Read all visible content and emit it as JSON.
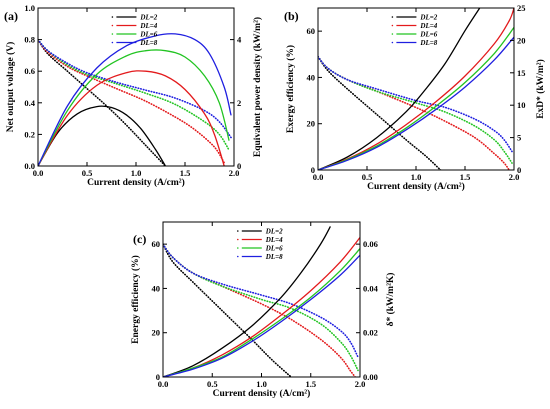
{
  "chart_data": [
    {
      "type": "line",
      "panel": "(a)",
      "xlabel": "Current density (A/cm²)",
      "ylabel_left": "Net output voltage (V)",
      "ylabel_right": "Equivalent power density (kW/m²)",
      "xlim": [
        0,
        2.0
      ],
      "ylim_left": [
        0,
        1.0
      ],
      "ylim_right": [
        0,
        5
      ],
      "xticks": [
        "0.0",
        "0.5",
        "1.0",
        "1.5",
        "2.0"
      ],
      "yticks_left": [
        "0.0",
        "0.2",
        "0.4",
        "0.6",
        "0.8",
        "1.0"
      ],
      "yticks_right": [
        "0",
        "2",
        "4"
      ],
      "legend": {
        "position": "top-right",
        "entries": [
          "DL=2",
          "DL=4",
          "DL=6",
          "DL=8"
        ]
      },
      "colors": {
        "DL=2": "#000000",
        "DL=4": "#e31a1c",
        "DL=6": "#22c422",
        "DL=8": "#1f1fe0"
      },
      "series": [
        {
          "name": "DL=2",
          "axis": "left",
          "style": "dotted",
          "x": [
            0.0,
            0.1,
            0.3,
            0.5,
            0.7,
            0.9,
            1.1,
            1.3
          ],
          "y": [
            0.8,
            0.71,
            0.6,
            0.49,
            0.38,
            0.26,
            0.13,
            0.0
          ]
        },
        {
          "name": "DL=4",
          "axis": "left",
          "style": "dotted",
          "x": [
            0.0,
            0.1,
            0.3,
            0.5,
            0.8,
            1.1,
            1.4,
            1.6,
            1.8,
            1.9
          ],
          "y": [
            0.8,
            0.72,
            0.63,
            0.57,
            0.49,
            0.41,
            0.31,
            0.23,
            0.12,
            0.02
          ]
        },
        {
          "name": "DL=6",
          "axis": "left",
          "style": "dotted",
          "x": [
            0.0,
            0.1,
            0.3,
            0.5,
            0.8,
            1.1,
            1.4,
            1.7,
            1.85,
            1.95
          ],
          "y": [
            0.8,
            0.73,
            0.64,
            0.58,
            0.52,
            0.46,
            0.39,
            0.28,
            0.2,
            0.1
          ]
        },
        {
          "name": "DL=8",
          "axis": "left",
          "style": "dotted",
          "x": [
            0.0,
            0.1,
            0.3,
            0.5,
            0.8,
            1.1,
            1.4,
            1.7,
            1.85,
            1.97
          ],
          "y": [
            0.8,
            0.73,
            0.65,
            0.59,
            0.53,
            0.48,
            0.43,
            0.35,
            0.28,
            0.18
          ]
        },
        {
          "name": "DL=2",
          "axis": "right",
          "style": "solid",
          "x": [
            0.0,
            0.2,
            0.4,
            0.6,
            0.75,
            0.9,
            1.05,
            1.2,
            1.3
          ],
          "y": [
            0.0,
            1.05,
            1.65,
            1.88,
            1.85,
            1.62,
            1.18,
            0.52,
            0.0
          ]
        },
        {
          "name": "DL=4",
          "axis": "right",
          "style": "solid",
          "x": [
            0.0,
            0.3,
            0.6,
            0.9,
            1.1,
            1.3,
            1.5,
            1.7,
            1.8,
            1.9
          ],
          "y": [
            0.0,
            1.6,
            2.55,
            2.95,
            3.0,
            2.85,
            2.42,
            1.65,
            1.0,
            0.0
          ]
        },
        {
          "name": "DL=6",
          "axis": "right",
          "style": "solid",
          "x": [
            0.0,
            0.3,
            0.6,
            0.9,
            1.1,
            1.3,
            1.5,
            1.7,
            1.85,
            1.95
          ],
          "y": [
            0.0,
            1.75,
            2.9,
            3.48,
            3.65,
            3.65,
            3.45,
            2.85,
            2.0,
            0.8
          ]
        },
        {
          "name": "DL=8",
          "axis": "right",
          "style": "solid",
          "x": [
            0.0,
            0.3,
            0.6,
            0.9,
            1.2,
            1.4,
            1.6,
            1.75,
            1.9,
            1.97
          ],
          "y": [
            0.0,
            1.9,
            3.1,
            3.8,
            4.12,
            4.18,
            4.0,
            3.55,
            2.5,
            1.6
          ]
        }
      ]
    },
    {
      "type": "line",
      "panel": "(b)",
      "xlabel": "Current density (A/cm²)",
      "ylabel_left": "Exergy efficiency (%)",
      "ylabel_right": "ExD* (kW/m²)",
      "xlim": [
        0,
        2.0
      ],
      "ylim_left": [
        0,
        70
      ],
      "ylim_right": [
        0,
        25
      ],
      "xticks": [
        "0.0",
        "0.5",
        "1.0",
        "1.5",
        "2.0"
      ],
      "yticks_left": [
        "0",
        "20",
        "40",
        "60"
      ],
      "yticks_right": [
        "0",
        "5",
        "10",
        "15",
        "20",
        "25"
      ],
      "legend": {
        "position": "top-right",
        "entries": [
          "DL=2",
          "DL=4",
          "DL=6",
          "DL=8"
        ]
      },
      "colors": {
        "DL=2": "#000000",
        "DL=4": "#e31a1c",
        "DL=6": "#22c422",
        "DL=8": "#1f1fe0"
      },
      "series": [
        {
          "name": "DL=2",
          "axis": "left",
          "style": "dotted",
          "x": [
            0.0,
            0.1,
            0.3,
            0.6,
            0.9,
            1.1,
            1.25
          ],
          "y": [
            49,
            43,
            35,
            24,
            13,
            6,
            0
          ]
        },
        {
          "name": "DL=4",
          "axis": "left",
          "style": "dotted",
          "x": [
            0.0,
            0.1,
            0.3,
            0.6,
            1.0,
            1.3,
            1.6,
            1.8,
            1.9,
            1.95
          ],
          "y": [
            49,
            44,
            39,
            34,
            27,
            21,
            14,
            7,
            3,
            0
          ]
        },
        {
          "name": "DL=6",
          "axis": "left",
          "style": "dotted",
          "x": [
            0.0,
            0.1,
            0.3,
            0.6,
            1.0,
            1.3,
            1.6,
            1.8,
            1.9,
            1.98
          ],
          "y": [
            49,
            44,
            39,
            34,
            29,
            25,
            19,
            13,
            8,
            3
          ]
        },
        {
          "name": "DL=8",
          "axis": "left",
          "style": "dotted",
          "x": [
            0.0,
            0.1,
            0.3,
            0.6,
            1.0,
            1.3,
            1.6,
            1.8,
            1.9,
            1.98
          ],
          "y": [
            49,
            44,
            39,
            35,
            30,
            27,
            22,
            17,
            13,
            8
          ]
        },
        {
          "name": "DL=2",
          "axis": "right",
          "style": "solid",
          "x": [
            0.0,
            0.3,
            0.6,
            0.9,
            1.1,
            1.3,
            1.5,
            1.65
          ],
          "y": [
            0.0,
            2.0,
            5.0,
            9.0,
            12.5,
            16.5,
            21.5,
            25.0
          ]
        },
        {
          "name": "DL=4",
          "axis": "right",
          "style": "solid",
          "x": [
            0.0,
            0.3,
            0.6,
            0.9,
            1.2,
            1.5,
            1.8,
            1.95,
            2.0
          ],
          "y": [
            0.0,
            1.7,
            4.0,
            7.0,
            10.5,
            14.5,
            19.5,
            23.0,
            25.0
          ]
        },
        {
          "name": "DL=6",
          "axis": "right",
          "style": "solid",
          "x": [
            0.0,
            0.3,
            0.6,
            0.9,
            1.2,
            1.5,
            1.8,
            2.0
          ],
          "y": [
            0.0,
            1.6,
            3.7,
            6.5,
            9.8,
            13.5,
            18.0,
            22.0
          ]
        },
        {
          "name": "DL=8",
          "axis": "right",
          "style": "solid",
          "x": [
            0.0,
            0.3,
            0.6,
            0.9,
            1.2,
            1.5,
            1.8,
            2.0
          ],
          "y": [
            0.0,
            1.5,
            3.5,
            6.2,
            9.3,
            12.8,
            17.0,
            20.5
          ]
        }
      ]
    },
    {
      "type": "line",
      "panel": "(c)",
      "xlabel": "Current density (A/cm²)",
      "ylabel_left": "Energy efficiency (%)",
      "ylabel_right": "δ* (kW/m²K)",
      "xlim": [
        0,
        2.0
      ],
      "ylim_left": [
        0,
        70
      ],
      "ylim_right": [
        0,
        0.07
      ],
      "xticks": [
        "0.0",
        "0.5",
        "1.0",
        "1.5",
        "2.0"
      ],
      "yticks_left": [
        "0",
        "20",
        "40",
        "60"
      ],
      "yticks_right": [
        "0.00",
        "0.02",
        "0.04",
        "0.06"
      ],
      "legend": {
        "position": "top-right",
        "entries": [
          "DL=2",
          "DL=4",
          "DL=6",
          "DL=8"
        ]
      },
      "colors": {
        "DL=2": "#000000",
        "DL=4": "#e31a1c",
        "DL=6": "#22c422",
        "DL=8": "#1f1fe0"
      },
      "series": [
        {
          "name": "DL=2",
          "axis": "left",
          "style": "dotted",
          "x": [
            0.0,
            0.1,
            0.3,
            0.6,
            0.9,
            1.1,
            1.3
          ],
          "y": [
            60,
            52,
            43,
            30,
            17,
            8,
            0
          ]
        },
        {
          "name": "DL=4",
          "axis": "left",
          "style": "dotted",
          "x": [
            0.0,
            0.1,
            0.3,
            0.6,
            1.0,
            1.3,
            1.6,
            1.8,
            1.9,
            1.95
          ],
          "y": [
            60,
            54,
            47,
            41,
            33,
            26,
            17,
            9,
            3,
            0
          ]
        },
        {
          "name": "DL=6",
          "axis": "left",
          "style": "dotted",
          "x": [
            0.0,
            0.1,
            0.3,
            0.6,
            1.0,
            1.3,
            1.6,
            1.8,
            1.9,
            1.98
          ],
          "y": [
            60,
            54,
            47,
            41,
            35,
            31,
            24,
            16,
            10,
            3
          ]
        },
        {
          "name": "DL=8",
          "axis": "left",
          "style": "dotted",
          "x": [
            0.0,
            0.1,
            0.3,
            0.6,
            1.0,
            1.3,
            1.6,
            1.8,
            1.9,
            1.98
          ],
          "y": [
            60,
            54,
            47,
            42,
            37,
            33,
            27,
            21,
            16,
            9
          ]
        },
        {
          "name": "DL=2",
          "axis": "right",
          "style": "solid",
          "x": [
            0.0,
            0.3,
            0.6,
            0.9,
            1.2,
            1.4,
            1.6,
            1.7
          ],
          "y": [
            0.0,
            0.005,
            0.013,
            0.023,
            0.036,
            0.047,
            0.06,
            0.068
          ]
        },
        {
          "name": "DL=4",
          "axis": "right",
          "style": "solid",
          "x": [
            0.0,
            0.3,
            0.6,
            0.9,
            1.2,
            1.5,
            1.8,
            2.0
          ],
          "y": [
            0.0,
            0.004,
            0.01,
            0.018,
            0.028,
            0.039,
            0.052,
            0.063
          ]
        },
        {
          "name": "DL=6",
          "axis": "right",
          "style": "solid",
          "x": [
            0.0,
            0.3,
            0.6,
            0.9,
            1.2,
            1.5,
            1.8,
            2.0
          ],
          "y": [
            0.0,
            0.004,
            0.009,
            0.017,
            0.026,
            0.036,
            0.048,
            0.058
          ]
        },
        {
          "name": "DL=8",
          "axis": "right",
          "style": "solid",
          "x": [
            0.0,
            0.3,
            0.6,
            0.9,
            1.2,
            1.5,
            1.8,
            2.0
          ],
          "y": [
            0.0,
            0.0035,
            0.0085,
            0.016,
            0.025,
            0.035,
            0.046,
            0.055
          ]
        }
      ]
    }
  ]
}
